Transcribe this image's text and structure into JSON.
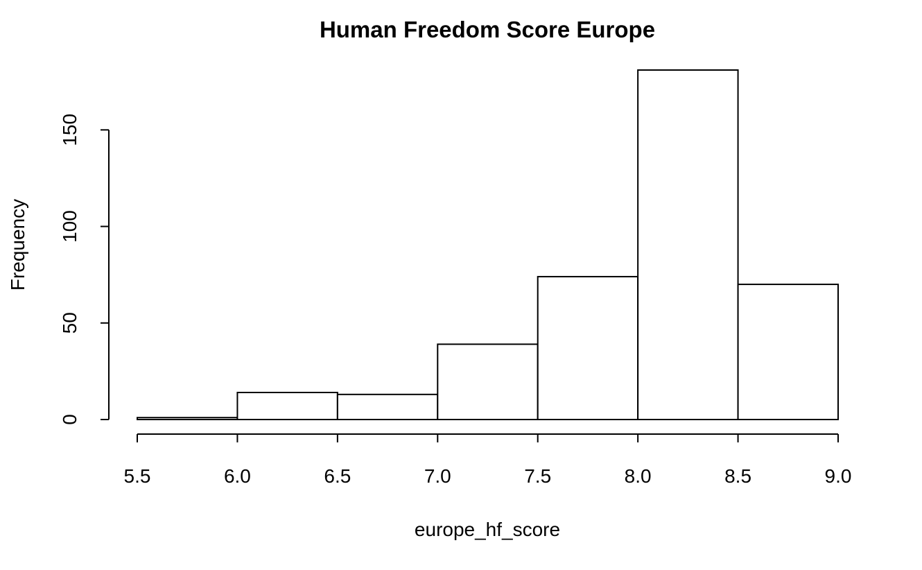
{
  "chart_data": {
    "type": "histogram",
    "title": "Human Freedom Score Europe",
    "x_label": "europe_hf_score",
    "y_label": "Frequency",
    "bins": [
      5.5,
      6.0,
      6.5,
      7.0,
      7.5,
      8.0,
      8.5,
      9.0
    ],
    "values": [
      1,
      14,
      13,
      39,
      74,
      181,
      70
    ],
    "color": "#ffffff",
    "edge_color": "#000000",
    "xlim": [
      5.5,
      9.0
    ],
    "xticks": [
      5.5,
      {
        "value": 6,
        "label": "6.0"
      },
      6.5,
      {
        "value": 7,
        "label": "7.0"
      },
      7.5,
      {
        "value": 8,
        "label": "8.0"
      },
      8.5,
      {
        "value": 9,
        "label": "9.0"
      }
    ],
    "ylim": [
      0,
      181
    ],
    "yticks": [
      0,
      50,
      100,
      150
    ],
    "grid": false
  }
}
